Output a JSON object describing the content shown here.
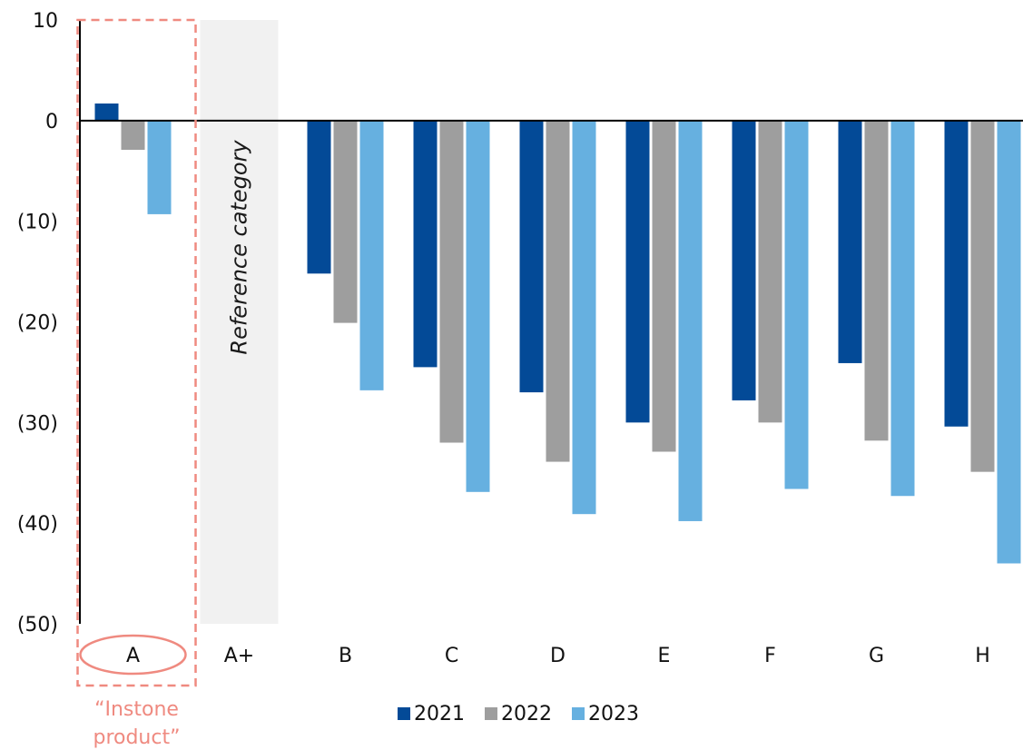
{
  "chart_data": {
    "type": "bar",
    "categories": [
      "A",
      "A+",
      "B",
      "C",
      "D",
      "E",
      "F",
      "G",
      "H"
    ],
    "series": [
      {
        "name": "2021",
        "color": "#034a97",
        "values": [
          1.7,
          null,
          -15.2,
          -24.5,
          -27.0,
          -30.0,
          -27.8,
          -24.1,
          -30.4
        ]
      },
      {
        "name": "2022",
        "color": "#9e9e9e",
        "values": [
          -2.9,
          null,
          -20.1,
          -32.0,
          -33.9,
          -32.9,
          -30.0,
          -31.8,
          -34.9
        ]
      },
      {
        "name": "2023",
        "color": "#66b0e0",
        "values": [
          -9.3,
          null,
          -26.8,
          -36.9,
          -39.1,
          -39.8,
          -36.6,
          -37.3,
          -44.0
        ]
      }
    ],
    "ylim": [
      -50,
      10
    ],
    "yticks": [
      10,
      0,
      -10,
      -20,
      -30,
      -40,
      -50
    ],
    "ytick_labels": [
      "10",
      "0",
      "(10)",
      "(20)",
      "(30)",
      "(40)",
      "(50)"
    ],
    "grid": false,
    "legend_position": "bottom-center",
    "annotations": {
      "reference_category": {
        "category": "A+",
        "text": "Reference category",
        "shade": "#f1f1f1"
      },
      "highlight": {
        "category": "A",
        "text": "“Instone product”",
        "color": "#ef8a80"
      }
    }
  }
}
